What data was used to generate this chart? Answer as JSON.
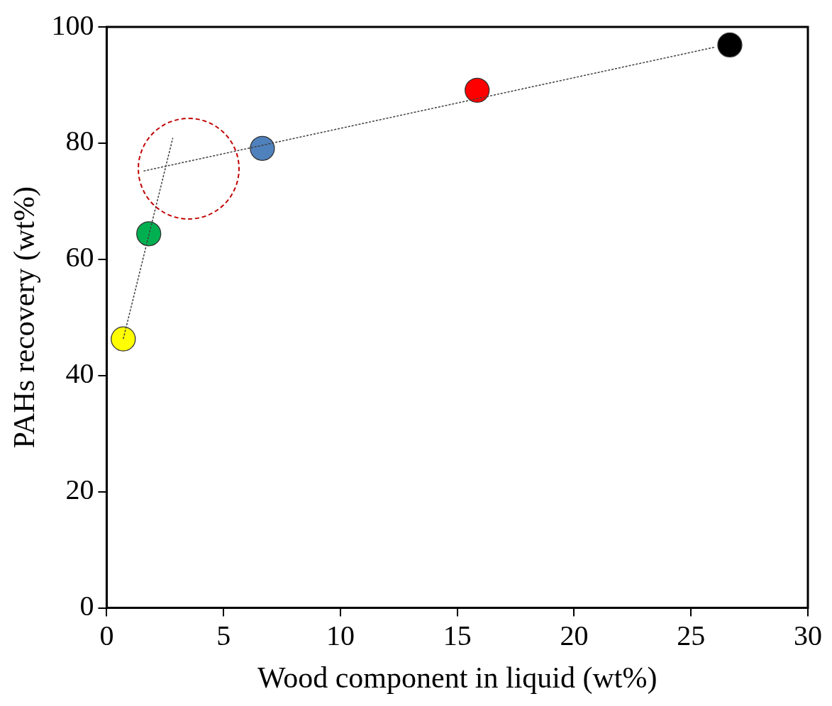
{
  "chart_data": {
    "type": "scatter",
    "xlabel": "Wood component in liquid (wt%)",
    "ylabel": "PAHs recovery (wt%)",
    "xlim": [
      0,
      30
    ],
    "xticks": [
      0,
      5,
      10,
      15,
      20,
      25,
      30
    ],
    "ylim": [
      0,
      100
    ],
    "yticks": [
      0,
      20,
      40,
      60,
      80,
      100
    ],
    "marker": "circle",
    "series": [
      {
        "x": [
          0.71,
          1.8,
          6.66,
          15.85,
          26.66
        ],
        "values": [
          46.3,
          64.4,
          79.1,
          89.1,
          96.9
        ],
        "colors": [
          "#ffff00",
          "#00b050",
          "#4f81bd",
          "#ff0000",
          "#000000"
        ]
      },
      {
        "type": "line",
        "x": [
          0.71,
          2.83
        ],
        "values": [
          46.3,
          80.9
        ],
        "color": "#404040",
        "line_style": "dotted",
        "marker": "none"
      },
      {
        "type": "line",
        "x": [
          1.58,
          26.0
        ],
        "values": [
          75.2,
          96.5
        ],
        "color": "#404040",
        "line_style": "dotted",
        "marker": "none"
      }
    ]
  }
}
